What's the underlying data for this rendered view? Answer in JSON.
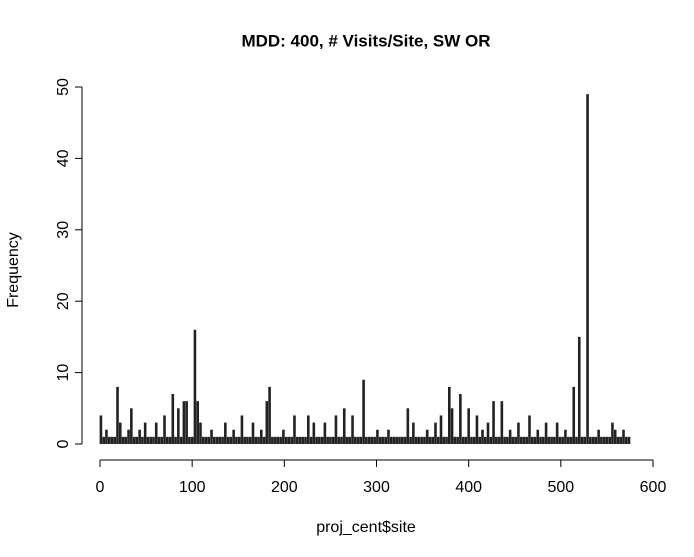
{
  "chart_data": {
    "type": "bar",
    "title": "MDD: 400, # Visits/Site, SW OR",
    "x_label": "proj_cent$site",
    "y_label": "Frequency",
    "color": "#222222",
    "x": [
      1,
      4,
      7,
      10,
      13,
      16,
      19,
      22,
      25,
      28,
      31,
      34,
      37,
      40,
      43,
      46,
      49,
      52,
      55,
      58,
      61,
      64,
      67,
      70,
      73,
      76,
      79,
      82,
      85,
      88,
      91,
      94,
      97,
      100,
      103,
      106,
      109,
      112,
      115,
      118,
      121,
      124,
      127,
      130,
      133,
      136,
      139,
      142,
      145,
      148,
      151,
      154,
      157,
      160,
      163,
      166,
      169,
      172,
      175,
      178,
      181,
      184,
      187,
      190,
      193,
      196,
      199,
      202,
      205,
      208,
      211,
      214,
      217,
      220,
      223,
      226,
      229,
      232,
      235,
      238,
      241,
      244,
      247,
      250,
      253,
      256,
      259,
      262,
      265,
      268,
      271,
      274,
      277,
      280,
      283,
      286,
      289,
      292,
      295,
      298,
      301,
      304,
      307,
      310,
      313,
      316,
      319,
      322,
      325,
      328,
      331,
      334,
      337,
      340,
      343,
      346,
      349,
      352,
      355,
      358,
      361,
      364,
      367,
      370,
      373,
      376,
      379,
      382,
      385,
      388,
      391,
      394,
      397,
      400,
      403,
      406,
      409,
      412,
      415,
      418,
      421,
      424,
      427,
      430,
      433,
      436,
      439,
      442,
      445,
      448,
      451,
      454,
      457,
      460,
      463,
      466,
      469,
      472,
      475,
      478,
      481,
      484,
      487,
      490,
      493,
      496,
      499,
      502,
      505,
      508,
      511,
      514,
      517,
      520,
      523,
      526,
      529,
      532,
      535,
      538,
      541,
      544,
      547,
      550,
      553,
      556,
      559,
      562,
      565,
      568,
      571,
      574
    ],
    "values": [
      4,
      1,
      2,
      1,
      1,
      1,
      8,
      3,
      1,
      1,
      2,
      5,
      1,
      1,
      2,
      1,
      3,
      1,
      1,
      1,
      3,
      1,
      1,
      4,
      1,
      1,
      7,
      1,
      5,
      1,
      6,
      6,
      1,
      1,
      16,
      6,
      3,
      1,
      1,
      1,
      2,
      1,
      1,
      1,
      1,
      3,
      1,
      1,
      2,
      1,
      1,
      4,
      1,
      1,
      1,
      3,
      1,
      1,
      2,
      1,
      6,
      8,
      1,
      1,
      1,
      1,
      2,
      1,
      1,
      1,
      4,
      1,
      1,
      1,
      1,
      4,
      1,
      3,
      1,
      1,
      1,
      3,
      1,
      1,
      1,
      4,
      1,
      1,
      5,
      1,
      1,
      4,
      1,
      1,
      1,
      9,
      1,
      1,
      1,
      1,
      2,
      1,
      1,
      1,
      2,
      1,
      1,
      1,
      1,
      1,
      1,
      5,
      1,
      3,
      1,
      1,
      1,
      1,
      2,
      1,
      1,
      3,
      1,
      4,
      1,
      1,
      8,
      5,
      1,
      1,
      7,
      1,
      1,
      5,
      1,
      1,
      4,
      1,
      2,
      1,
      3,
      1,
      6,
      1,
      1,
      6,
      1,
      1,
      2,
      1,
      1,
      3,
      1,
      1,
      1,
      4,
      1,
      1,
      2,
      1,
      1,
      3,
      1,
      1,
      1,
      3,
      1,
      1,
      2,
      1,
      1,
      8,
      1,
      15,
      1,
      1,
      49,
      1,
      1,
      1,
      2,
      1,
      1,
      1,
      1,
      3,
      2,
      1,
      1,
      2,
      1,
      1
    ],
    "xlim": [
      0,
      600
    ],
    "xticks": [
      0,
      100,
      200,
      300,
      400,
      500,
      600
    ],
    "ylim": [
      0,
      50
    ],
    "yticks": [
      0,
      10,
      20,
      30,
      40,
      50
    ]
  }
}
